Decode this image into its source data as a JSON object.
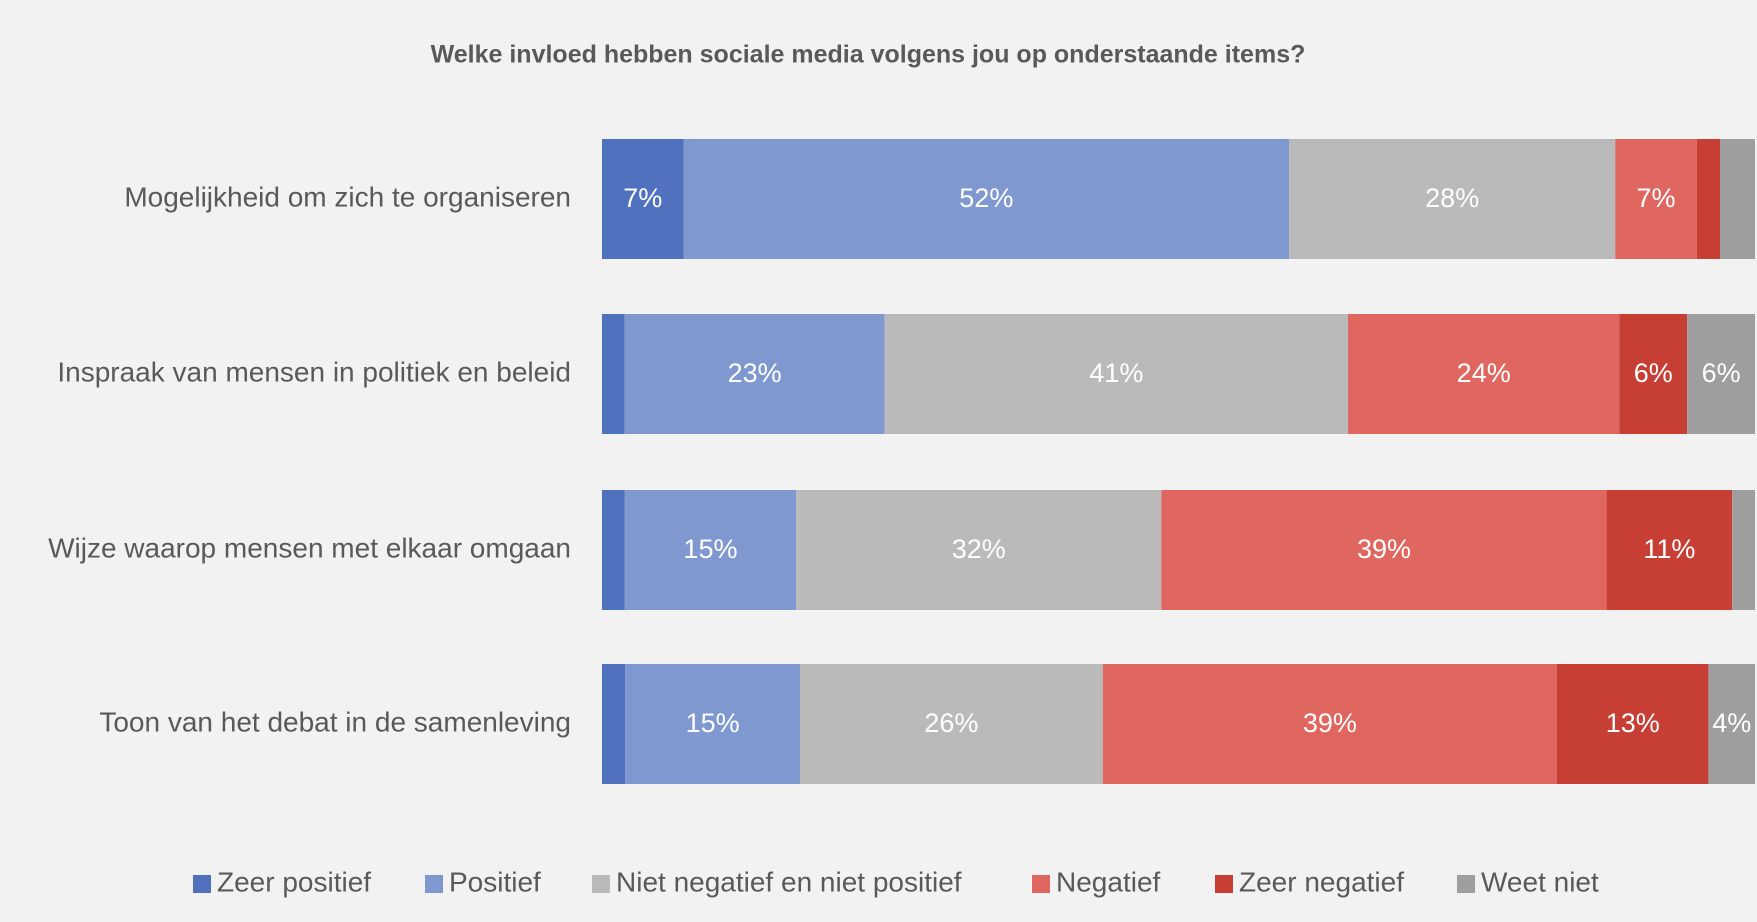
{
  "chart_data": {
    "type": "bar",
    "orientation": "horizontal",
    "stacked": "percent",
    "title": "Welke invloed hebben sociale media volgens jou op onderstaande items?",
    "categories": [
      "Mogelijkheid om zich te organiseren",
      "Inspraak van mensen in politiek en beleid",
      "Wijze waarop mensen met elkaar omgaan",
      "Toon van het debat in de samenleving"
    ],
    "series": [
      {
        "name": "Zeer positief",
        "color": "#4f71be",
        "values": [
          7,
          2,
          2,
          2
        ],
        "value_labels": [
          "7%",
          null,
          null,
          null
        ]
      },
      {
        "name": "Positief",
        "color": "#7f98d0",
        "values": [
          52,
          23,
          15,
          15
        ],
        "value_labels": [
          "52%",
          "23%",
          "15%",
          "15%"
        ]
      },
      {
        "name": "Niet negatief en niet positief",
        "color": "#bababa",
        "values": [
          28,
          41,
          32,
          26
        ],
        "value_labels": [
          "28%",
          "41%",
          "32%",
          "26%"
        ]
      },
      {
        "name": "Negatief",
        "color": "#e0675f",
        "values": [
          7,
          24,
          39,
          39
        ],
        "value_labels": [
          "7%",
          "24%",
          "39%",
          "39%"
        ]
      },
      {
        "name": "Zeer negatief",
        "color": "#c73e35",
        "values": [
          2,
          6,
          11,
          13
        ],
        "value_labels": [
          null,
          "6%",
          "11%",
          "13%"
        ]
      },
      {
        "name": "Weet niet",
        "color": "#9e9e9e",
        "values": [
          3,
          6,
          2,
          4
        ],
        "value_labels": [
          null,
          "6%",
          null,
          "4%"
        ]
      }
    ],
    "legend": "bottom"
  }
}
